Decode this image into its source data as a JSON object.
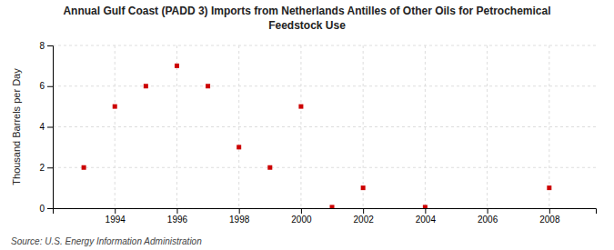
{
  "chart_data": {
    "type": "scatter",
    "title": [
      "Annual Gulf Coast (PADD 3) Imports from Netherlands Antilles of Other Oils for Petrochemical",
      "Feedstock Use"
    ],
    "ylabel": "Thousand Barrels per Day",
    "source": "Source: U.S. Energy Information Administration",
    "x": [
      1993,
      1994,
      1995,
      1996,
      1997,
      1998,
      1999,
      2000,
      2001,
      2002,
      2004,
      2008
    ],
    "values": [
      2.0,
      5.0,
      6.0,
      7.0,
      6.0,
      3.0,
      2.0,
      5.0,
      0.05,
      1.0,
      0.05,
      1.0
    ],
    "color": "#cc0000",
    "marker": "square",
    "xlim": [
      1992.0,
      2009.5
    ],
    "ylim": [
      0,
      8
    ],
    "xticks": [
      1994,
      1996,
      1998,
      2000,
      2002,
      2004,
      2006,
      2008
    ],
    "yticks": [
      0,
      2,
      4,
      6,
      8
    ],
    "grid": true
  }
}
